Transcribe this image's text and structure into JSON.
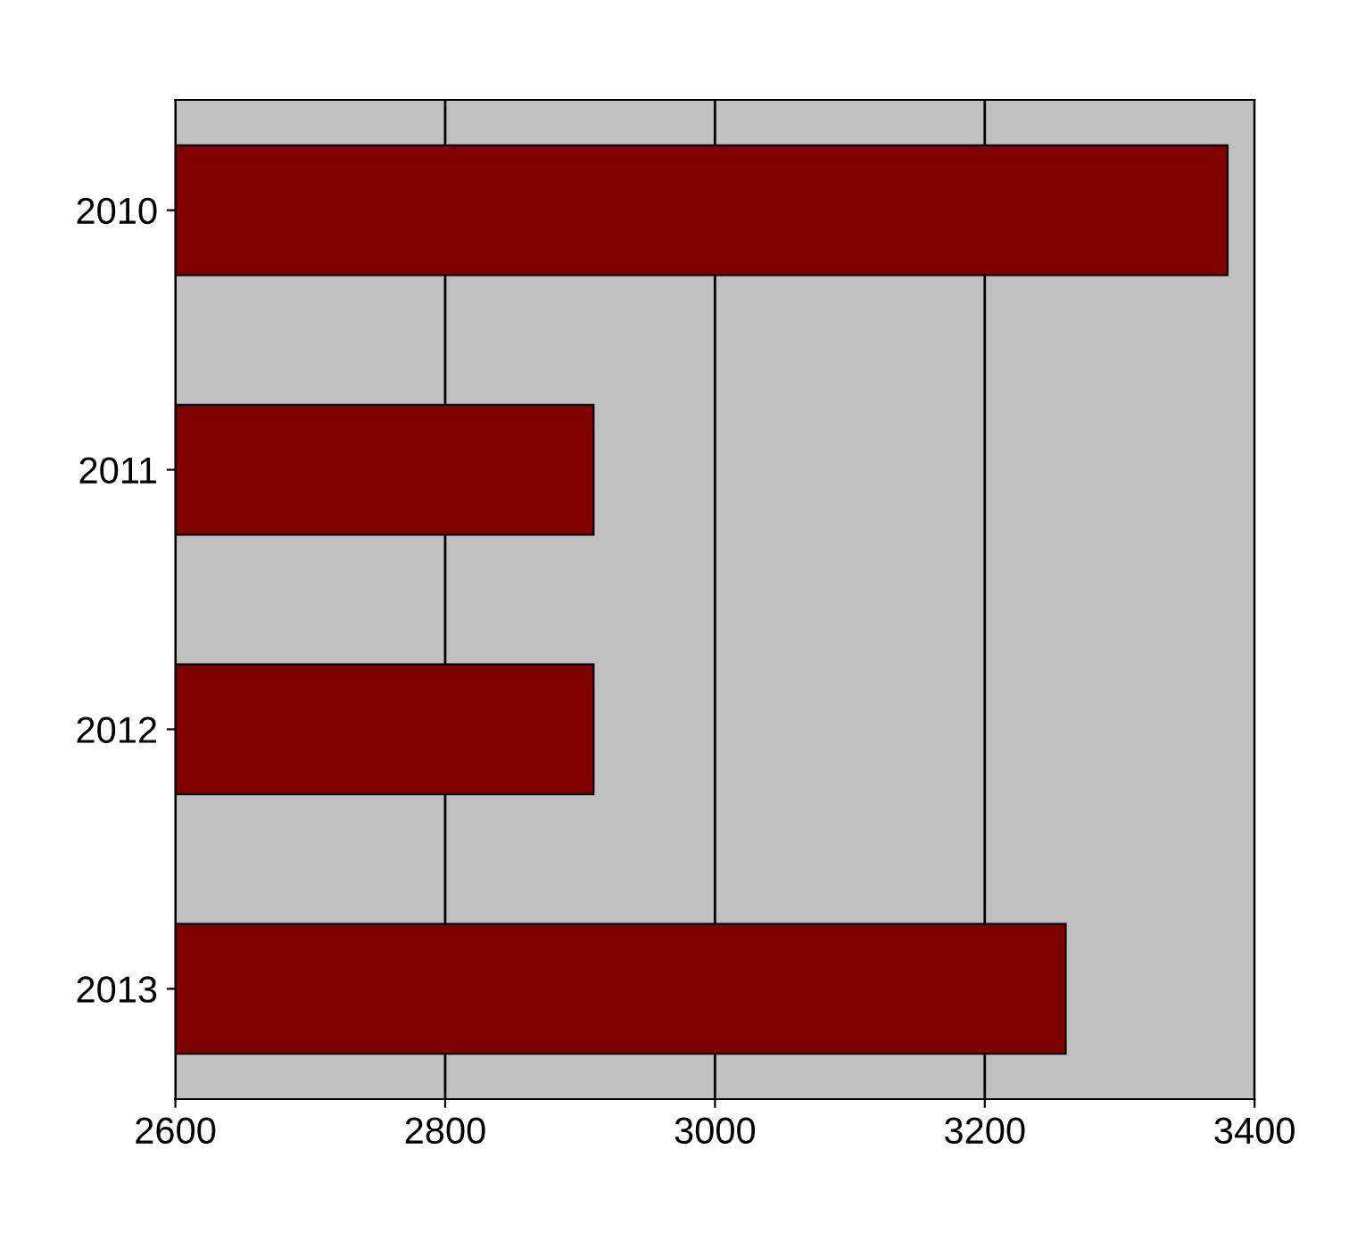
{
  "chart_data": {
    "type": "bar",
    "orientation": "horizontal",
    "categories": [
      "2010",
      "2011",
      "2012",
      "2013"
    ],
    "values": [
      3380,
      2910,
      2910,
      3260
    ],
    "color": "#800000",
    "xlim": [
      2600,
      3400
    ],
    "xticks": [
      2600,
      2800,
      3000,
      3200,
      3400
    ],
    "grid": "x"
  }
}
